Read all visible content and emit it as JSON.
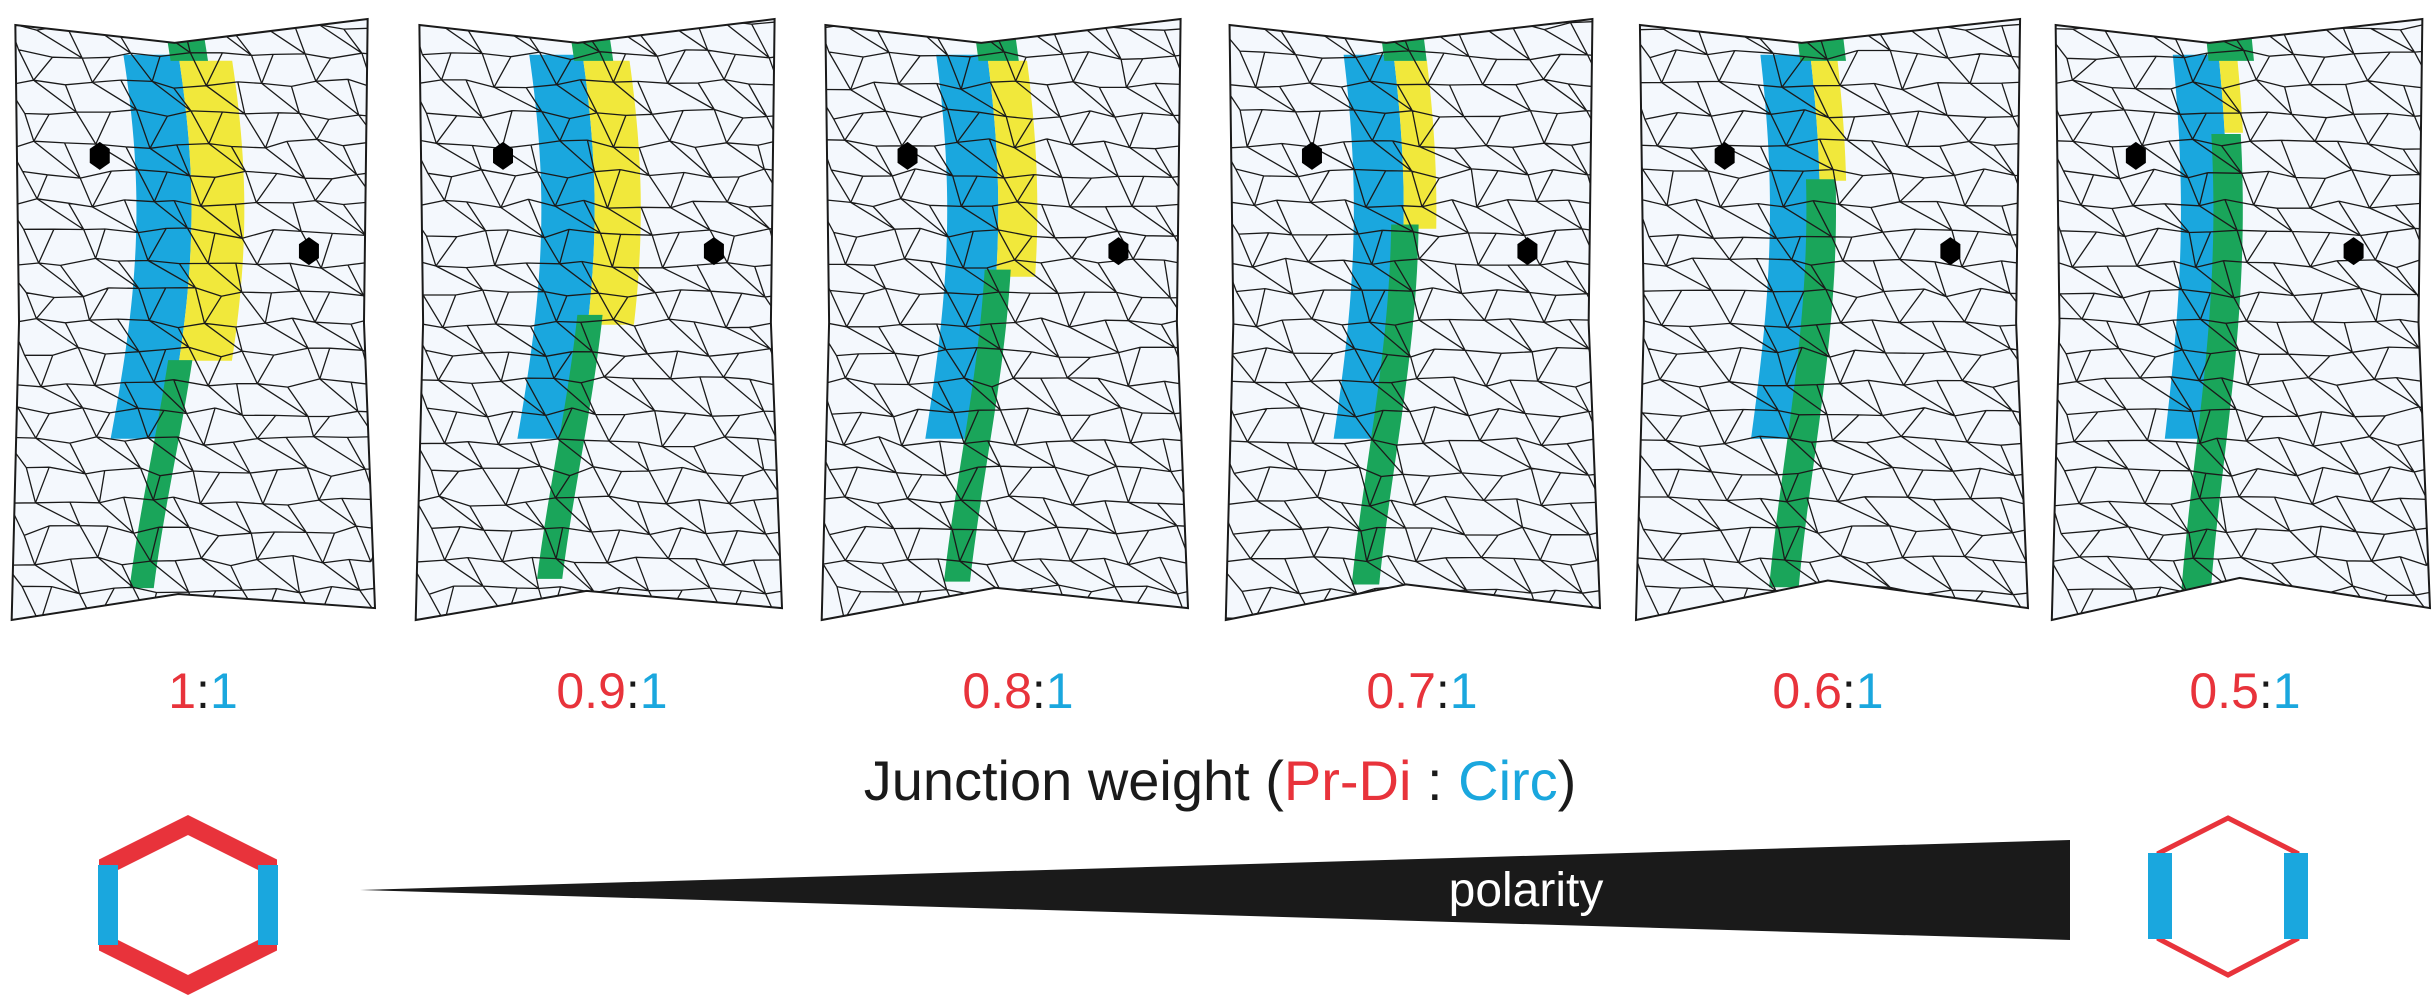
{
  "colors": {
    "pr_di": "#e8333b",
    "circ": "#1aa7de",
    "yellow_band": "#f1e83b",
    "green_band": "#1aa55a",
    "cell_fill": "#f4f8fd",
    "cell_stroke": "#1a1a1a",
    "marker": "#000000",
    "wedge": "#1a1a1a",
    "text": "#1a1a1a"
  },
  "panels": [
    {
      "ratio_left": "1",
      "ratio_sep": ":",
      "ratio_right": "1",
      "pr_di_weight": 1.0,
      "circ_weight": 1
    },
    {
      "ratio_left": "0.9",
      "ratio_sep": ":",
      "ratio_right": "1",
      "pr_di_weight": 0.9,
      "circ_weight": 1
    },
    {
      "ratio_left": "0.8",
      "ratio_sep": ":",
      "ratio_right": "1",
      "pr_di_weight": 0.8,
      "circ_weight": 1
    },
    {
      "ratio_left": "0.7",
      "ratio_sep": ":",
      "ratio_right": "1",
      "pr_di_weight": 0.7,
      "circ_weight": 1
    },
    {
      "ratio_left": "0.6",
      "ratio_sep": ":",
      "ratio_right": "1",
      "pr_di_weight": 0.6,
      "circ_weight": 1
    },
    {
      "ratio_left": "0.5",
      "ratio_sep": ":",
      "ratio_right": "1",
      "pr_di_weight": 0.5,
      "circ_weight": 1
    }
  ],
  "axis_title": {
    "prefix": "Junction weight (",
    "pr_di": "Pr-Di",
    "separator": " : ",
    "circ": "Circ",
    "suffix": ")"
  },
  "polarity": {
    "label": "polarity",
    "direction": "increasing to the right"
  },
  "icons": {
    "left": "hexagon-thick-red-pr-di-edges-icon",
    "right": "hexagon-thin-red-thick-blue-edges-icon"
  }
}
